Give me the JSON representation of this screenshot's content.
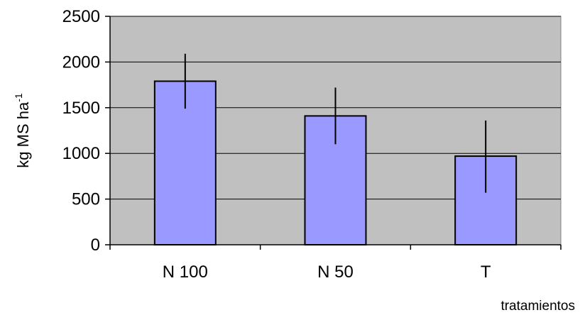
{
  "chart_data": {
    "type": "bar",
    "categories": [
      "N 100",
      "N 50",
      "T"
    ],
    "values": [
      1790,
      1410,
      970
    ],
    "error_bars": {
      "upper": [
        2090,
        1720,
        1360
      ],
      "lower": [
        1490,
        1100,
        570
      ]
    },
    "ylabel": {
      "base": "kg MS ha",
      "superscript": "-1"
    },
    "xlabel": "tratamientos",
    "ylim": [
      0,
      2500
    ],
    "yticks": [
      0,
      500,
      1000,
      1500,
      2000,
      2500
    ],
    "grid": true,
    "legend": "none",
    "colors": {
      "plot_background": "#c0c0c0",
      "bar_fill": "#9999ff",
      "bar_stroke": "#000000",
      "gridline": "#000000",
      "error_bar": "#000000"
    }
  }
}
